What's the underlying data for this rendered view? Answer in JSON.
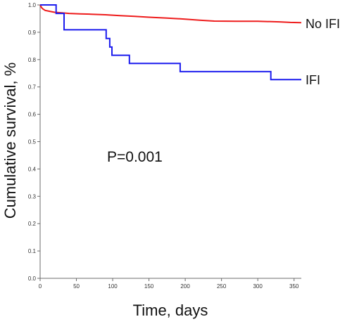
{
  "chart_data": {
    "type": "line",
    "step": true,
    "title": "",
    "xlabel": "Time, days",
    "ylabel": "Cumulative survival, %",
    "xlim": [
      0,
      360
    ],
    "ylim": [
      0.0,
      1.0
    ],
    "xticks": [
      0,
      50,
      100,
      150,
      200,
      250,
      300,
      350
    ],
    "xtick_labels": [
      "0",
      "50",
      "100",
      "150",
      "200",
      "250",
      "300",
      "350"
    ],
    "yticks": [
      0.0,
      0.1,
      0.2,
      0.3,
      0.4,
      0.5,
      0.6,
      0.7,
      0.8,
      0.9,
      1.0
    ],
    "ytick_labels": [
      "0.0",
      "0.1",
      "0.2",
      "0.3",
      "0.4",
      "0.5",
      "0.6",
      "0.7",
      "0.8",
      "0.9",
      "1.0"
    ],
    "grid": false,
    "annotation": "P=0.001",
    "series": [
      {
        "name": "No IFI",
        "color": "#ee1c1c",
        "points": [
          [
            0,
            1.0
          ],
          [
            2,
            0.99
          ],
          [
            4,
            0.985
          ],
          [
            7,
            0.98
          ],
          [
            12,
            0.977
          ],
          [
            20,
            0.973
          ],
          [
            30,
            0.971
          ],
          [
            40,
            0.969
          ],
          [
            55,
            0.967
          ],
          [
            70,
            0.966
          ],
          [
            90,
            0.964
          ],
          [
            110,
            0.961
          ],
          [
            130,
            0.958
          ],
          [
            150,
            0.955
          ],
          [
            175,
            0.952
          ],
          [
            200,
            0.948
          ],
          [
            220,
            0.944
          ],
          [
            240,
            0.941
          ],
          [
            270,
            0.94
          ],
          [
            300,
            0.94
          ],
          [
            330,
            0.938
          ],
          [
            345,
            0.936
          ],
          [
            360,
            0.935
          ]
        ]
      },
      {
        "name": "IFI",
        "color": "#1c1cee",
        "points": [
          [
            0,
            1.0
          ],
          [
            22,
            1.0
          ],
          [
            22,
            0.969
          ],
          [
            33,
            0.969
          ],
          [
            33,
            0.909
          ],
          [
            91,
            0.909
          ],
          [
            91,
            0.877
          ],
          [
            96,
            0.877
          ],
          [
            96,
            0.846
          ],
          [
            99,
            0.846
          ],
          [
            99,
            0.816
          ],
          [
            123,
            0.816
          ],
          [
            123,
            0.786
          ],
          [
            193,
            0.786
          ],
          [
            193,
            0.756
          ],
          [
            318,
            0.756
          ],
          [
            318,
            0.727
          ],
          [
            360,
            0.727
          ]
        ]
      }
    ]
  }
}
